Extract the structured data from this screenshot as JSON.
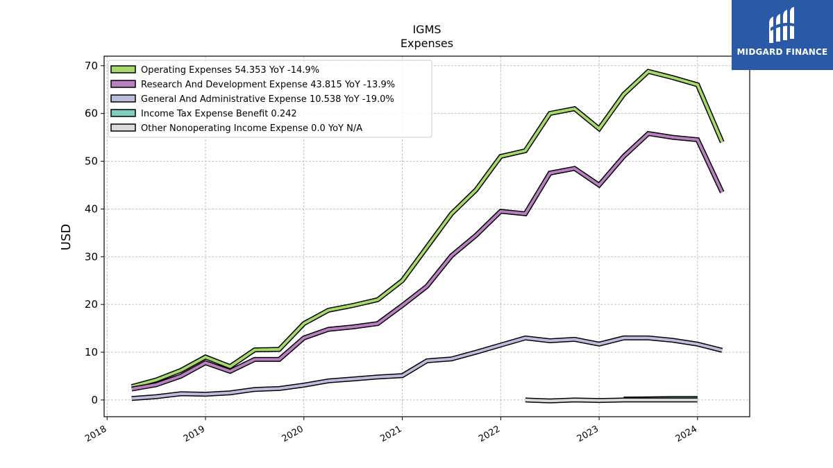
{
  "brand": {
    "name": "MIDGARD FINANCE",
    "bg": "#2a5aa6"
  },
  "chart_data": {
    "type": "line",
    "title": "IGMS",
    "subtitle": "Expenses",
    "xlabel": "",
    "ylabel": "USD",
    "xlim": [
      2017.97,
      2024.53
    ],
    "ylim": [
      -3.5,
      72
    ],
    "x_ticks": [
      "2018",
      "2019",
      "2020",
      "2021",
      "2022",
      "2023",
      "2024"
    ],
    "y_ticks": [
      0,
      10,
      20,
      30,
      40,
      50,
      60,
      70
    ],
    "grid": true,
    "legend_position": "top-left",
    "series": [
      {
        "name": "Operating Expenses",
        "legend": "Operating Expenses  54.353 YoY -14.9%",
        "color": "#a6d96a",
        "points": [
          [
            2018.25,
            2.8
          ],
          [
            2018.5,
            4.2
          ],
          [
            2018.75,
            6.2
          ],
          [
            2019.0,
            9.0
          ],
          [
            2019.25,
            7.0
          ],
          [
            2019.5,
            10.5
          ],
          [
            2019.75,
            10.6
          ],
          [
            2020.0,
            16.0
          ],
          [
            2020.25,
            18.8
          ],
          [
            2020.5,
            19.8
          ],
          [
            2020.75,
            21.0
          ],
          [
            2021.0,
            25.0
          ],
          [
            2021.25,
            32.0
          ],
          [
            2021.5,
            39.0
          ],
          [
            2021.75,
            44.0
          ],
          [
            2022.0,
            51.0
          ],
          [
            2022.25,
            52.2
          ],
          [
            2022.5,
            60.0
          ],
          [
            2022.75,
            61.0
          ],
          [
            2023.0,
            56.8
          ],
          [
            2023.25,
            64.0
          ],
          [
            2023.5,
            68.8
          ],
          [
            2023.75,
            67.5
          ],
          [
            2024.0,
            66.0
          ],
          [
            2024.25,
            54.0
          ]
        ]
      },
      {
        "name": "Research And Development Expense",
        "legend": "Research And Development Expense  43.815 YoY -13.9%",
        "color": "#b87fc1",
        "points": [
          [
            2018.25,
            2.3
          ],
          [
            2018.5,
            3.2
          ],
          [
            2018.75,
            5.0
          ],
          [
            2019.0,
            7.8
          ],
          [
            2019.25,
            6.0
          ],
          [
            2019.5,
            8.5
          ],
          [
            2019.75,
            8.5
          ],
          [
            2020.0,
            13.0
          ],
          [
            2020.25,
            14.8
          ],
          [
            2020.5,
            15.3
          ],
          [
            2020.75,
            16.0
          ],
          [
            2021.0,
            19.8
          ],
          [
            2021.25,
            23.8
          ],
          [
            2021.5,
            30.2
          ],
          [
            2021.75,
            34.5
          ],
          [
            2022.0,
            39.5
          ],
          [
            2022.25,
            39.0
          ],
          [
            2022.5,
            47.5
          ],
          [
            2022.75,
            48.5
          ],
          [
            2023.0,
            45.0
          ],
          [
            2023.25,
            51.0
          ],
          [
            2023.5,
            55.8
          ],
          [
            2023.75,
            55.0
          ],
          [
            2024.0,
            54.5
          ],
          [
            2024.25,
            43.5
          ]
        ]
      },
      {
        "name": "General And Administrative Expense",
        "legend": "General And Administrative Expense  10.538 YoY -19.0%",
        "color": "#bcbddc",
        "points": [
          [
            2018.25,
            0.3
          ],
          [
            2018.5,
            0.7
          ],
          [
            2018.75,
            1.3
          ],
          [
            2019.0,
            1.2
          ],
          [
            2019.25,
            1.5
          ],
          [
            2019.5,
            2.2
          ],
          [
            2019.75,
            2.4
          ],
          [
            2020.0,
            3.1
          ],
          [
            2020.25,
            4.0
          ],
          [
            2020.5,
            4.4
          ],
          [
            2020.75,
            4.8
          ],
          [
            2021.0,
            5.1
          ],
          [
            2021.25,
            8.2
          ],
          [
            2021.5,
            8.6
          ],
          [
            2021.75,
            10.0
          ],
          [
            2022.0,
            11.5
          ],
          [
            2022.25,
            13.0
          ],
          [
            2022.5,
            12.4
          ],
          [
            2022.75,
            12.7
          ],
          [
            2023.0,
            11.7
          ],
          [
            2023.25,
            13.0
          ],
          [
            2023.5,
            13.0
          ],
          [
            2023.75,
            12.5
          ],
          [
            2024.0,
            11.7
          ],
          [
            2024.25,
            10.4
          ]
        ]
      },
      {
        "name": "Income Tax Expense Benefit",
        "legend": "Income Tax Expense Benefit  0.242",
        "color": "#80cdc1",
        "points": [
          [
            2023.25,
            0.2
          ],
          [
            2023.5,
            0.25
          ],
          [
            2023.75,
            0.3
          ],
          [
            2024.0,
            0.3
          ]
        ]
      },
      {
        "name": "Other Nonoperating Income Expense",
        "legend": "Other Nonoperating Income Expense  0.0 YoY N/A",
        "color": "#d9d9d9",
        "points": [
          [
            2022.25,
            0.0
          ],
          [
            2022.5,
            -0.2
          ],
          [
            2022.75,
            0.0
          ],
          [
            2023.0,
            -0.1
          ],
          [
            2023.25,
            0.0
          ],
          [
            2023.5,
            0.0
          ],
          [
            2023.75,
            0.0
          ],
          [
            2024.0,
            0.0
          ]
        ]
      }
    ]
  }
}
